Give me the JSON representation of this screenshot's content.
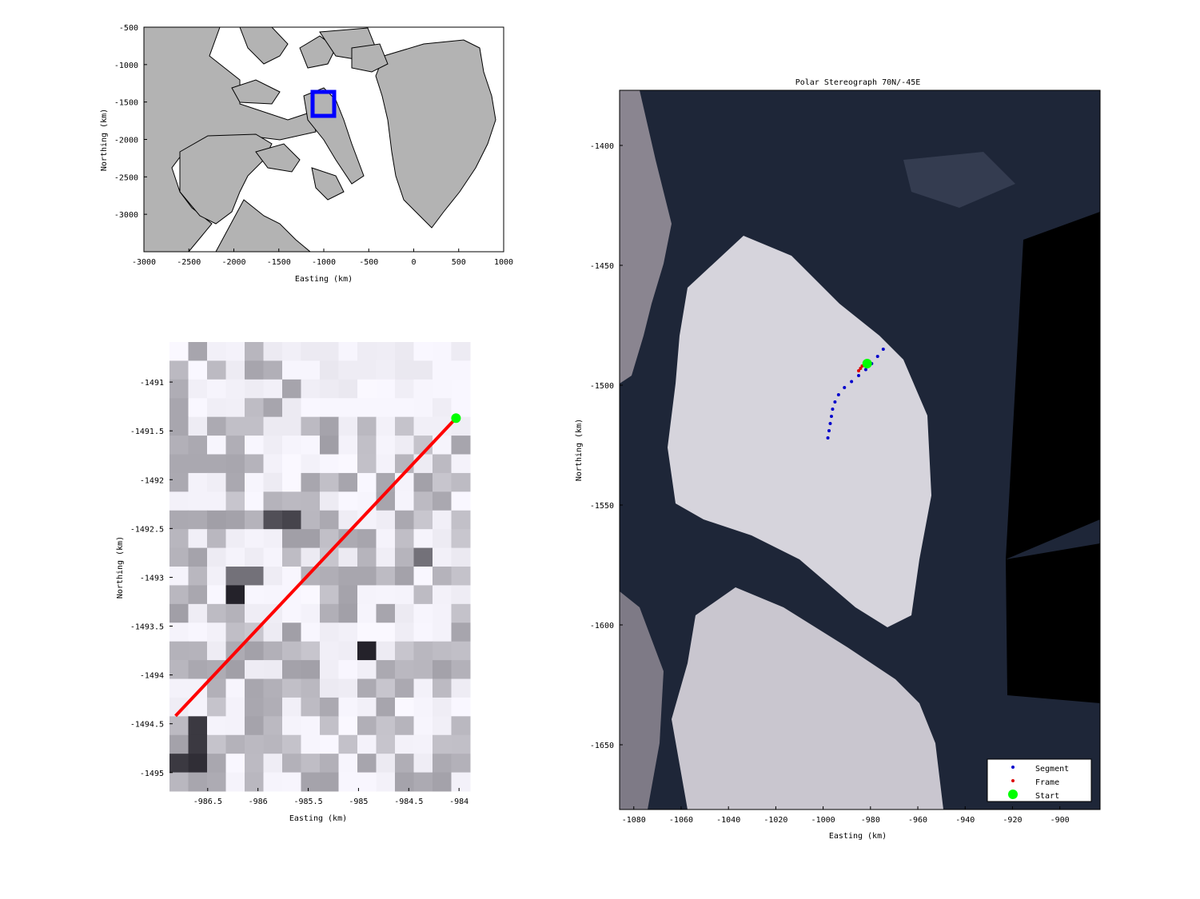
{
  "chart_data": [
    {
      "type": "map",
      "xlabel": "Easting (km)",
      "ylabel": "Northing (km)",
      "xlim": [
        -3000,
        1000
      ],
      "ylim": [
        -3500,
        -500
      ],
      "xticks": [
        -3000,
        -2500,
        -2000,
        -1500,
        -1000,
        -500,
        0,
        500,
        1000
      ],
      "yticks": [
        -500,
        -1000,
        -1500,
        -2000,
        -2500,
        -3000
      ],
      "land_color": "#b3b3b3",
      "highlight_box": {
        "x": [
          -1090,
          -880
        ],
        "y": [
          -1710,
          -1350
        ],
        "color": "#0000ff"
      }
    },
    {
      "type": "heatmap",
      "xlabel": "Easting (km)",
      "ylabel": "Northing (km)",
      "xlim": [
        -986.88,
        -983.89
      ],
      "ylim": [
        -1495.19,
        -1490.59
      ],
      "xticks": [
        -986.5,
        -986,
        -985.5,
        -985,
        -984.5,
        -984
      ],
      "yticks": [
        -1491,
        -1491.5,
        -1492,
        -1492.5,
        -1493,
        -1493.5,
        -1494,
        -1494.5,
        -1495
      ],
      "colormap": "gray-inverted",
      "line": {
        "x": [
          -986.82,
          -984.03
        ],
        "y": [
          -1494.42,
          -1491.37
        ],
        "color": "#ff0000"
      },
      "start": {
        "x": -984.03,
        "y": -1491.37,
        "color": "#00ff00"
      }
    },
    {
      "type": "scatter",
      "title": "Polar Stereograph 70N/-45E",
      "xlabel": "Easting (km)",
      "ylabel": "Northing (km)",
      "xlim": [
        -1086,
        -883
      ],
      "ylim": [
        -1677,
        -1377
      ],
      "xticks": [
        -1080,
        -1060,
        -1040,
        -1020,
        -1000,
        -980,
        -960,
        -940,
        -920,
        -900
      ],
      "yticks": [
        -1400,
        -1450,
        -1500,
        -1550,
        -1600,
        -1650
      ],
      "legend_position": "bottom-right",
      "series": [
        {
          "name": "Segment",
          "color": "#0000cc",
          "x": [
            -974.6,
            -977,
            -979.5,
            -982,
            -985,
            -988,
            -991,
            -993.5,
            -995,
            -996,
            -996.5,
            -997,
            -997.5,
            -998
          ],
          "y": [
            -1485,
            -1488,
            -1491,
            -1493.5,
            -1496,
            -1498.5,
            -1501,
            -1504,
            -1507,
            -1510,
            -1513,
            -1516,
            -1519,
            -1522
          ]
        },
        {
          "name": "Frame",
          "color": "#dd0000",
          "x": [
            -983.5,
            -984.2,
            -985
          ],
          "y": [
            -1492,
            -1493,
            -1494
          ]
        },
        {
          "name": "Start",
          "color": "#00ff00",
          "x": [
            -981.4
          ],
          "y": [
            -1491
          ]
        }
      ]
    }
  ]
}
